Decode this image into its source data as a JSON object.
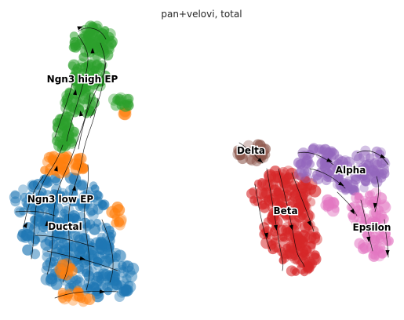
{
  "chart_data": {
    "type": "scatter",
    "title": "pan+velovi, total",
    "xlabel": "",
    "ylabel": "",
    "grid": false,
    "axes_visible": false,
    "legend": "on data",
    "overlay": "velocity streamlines (black arrows)",
    "colors": {
      "Ductal": "#1f77b4",
      "Ngn3 low EP": "#ff7f0e",
      "Ngn3 high EP": "#2ca02c",
      "Beta": "#d62728",
      "Alpha": "#9467bd",
      "Delta": "#8c564b",
      "Epsilon": "#e377c2"
    },
    "clusters": [
      {
        "name": "Ngn3 high EP"
      },
      {
        "name": "Ngn3 low EP"
      },
      {
        "name": "Ductal"
      },
      {
        "name": "Delta"
      },
      {
        "name": "Alpha"
      },
      {
        "name": "Beta"
      },
      {
        "name": "Epsilon"
      }
    ]
  }
}
